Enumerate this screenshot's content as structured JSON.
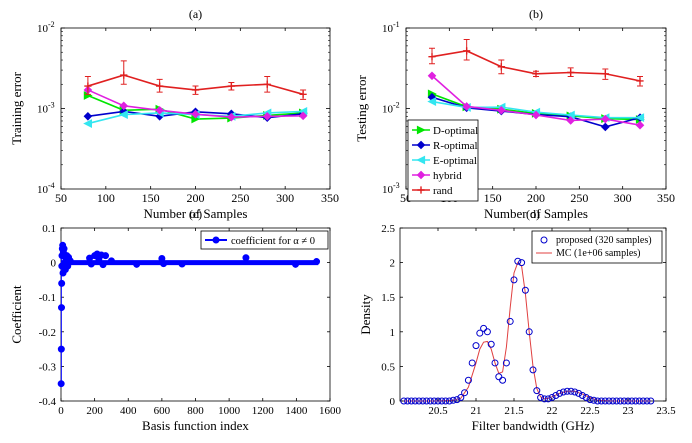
{
  "chart_data": [
    {
      "panel": "(a)",
      "type": "line",
      "title": "(a)",
      "xlabel": "Number of Samples",
      "ylabel": "Training error",
      "xlim": [
        50,
        350
      ],
      "ylim": [
        0.0001,
        0.01
      ],
      "yscale": "log",
      "xticks": [
        "50",
        "100",
        "150",
        "200",
        "250",
        "300",
        "350"
      ],
      "yticks": [
        {
          "base": "10",
          "exp": "-4",
          "value": 0.0001
        },
        {
          "base": "10",
          "exp": "-3",
          "value": 0.001
        },
        {
          "base": "10",
          "exp": "-2",
          "value": 0.01
        }
      ],
      "x": [
        80,
        120,
        160,
        200,
        240,
        280,
        320
      ],
      "series": [
        {
          "color": "#00e600",
          "marker": "triangle-right",
          "values": [
            0.00145,
            0.00095,
            0.00098,
            0.00074,
            0.00076,
            0.00082,
            0.00088
          ]
        },
        {
          "color": "#0000cc",
          "marker": "diamond",
          "values": [
            0.0008,
            0.00092,
            0.0008,
            0.00091,
            0.00086,
            0.00077,
            0.00086
          ]
        },
        {
          "color": "#33e6f0",
          "marker": "triangle-left",
          "values": [
            0.00065,
            0.00084,
            0.00088,
            0.00084,
            0.0008,
            0.00088,
            0.00092
          ]
        },
        {
          "color": "#e020e0",
          "marker": "diamond",
          "values": [
            0.0017,
            0.00108,
            0.00095,
            0.00085,
            0.00078,
            0.0008,
            0.00081
          ]
        },
        {
          "color": "#e02020",
          "marker": "plus",
          "values": [
            0.0019,
            0.0026,
            0.0019,
            0.0017,
            0.0019,
            0.002,
            0.0015
          ],
          "err_lo": [
            0.0015,
            0.002,
            0.0016,
            0.0015,
            0.0017,
            0.0016,
            0.0013
          ],
          "err_hi": [
            0.0025,
            0.0039,
            0.0023,
            0.0019,
            0.0021,
            0.0025,
            0.0017
          ]
        }
      ]
    },
    {
      "panel": "(b)",
      "type": "line",
      "title": "(b)",
      "xlabel": "Number of Samples",
      "ylabel": "Testing error",
      "xlim": [
        50,
        350
      ],
      "ylim": [
        0.001,
        0.1
      ],
      "yscale": "log",
      "xticks": [
        "50",
        "100",
        "150",
        "200",
        "250",
        "300",
        "350"
      ],
      "yticks": [
        {
          "base": "10",
          "exp": "-3",
          "value": 0.001
        },
        {
          "base": "10",
          "exp": "-2",
          "value": 0.01
        },
        {
          "base": "10",
          "exp": "-1",
          "value": 0.1
        }
      ],
      "legend_position": "bottom-left",
      "x": [
        80,
        120,
        160,
        200,
        240,
        280,
        320
      ],
      "series": [
        {
          "name": "D-optimal",
          "color": "#00e600",
          "marker": "triangle-right",
          "values": [
            0.0152,
            0.0105,
            0.0098,
            0.0087,
            0.0081,
            0.0075,
            0.0073
          ]
        },
        {
          "name": "R-optimal",
          "color": "#0000cc",
          "marker": "diamond",
          "values": [
            0.0138,
            0.0102,
            0.0093,
            0.0084,
            0.0079,
            0.0059,
            0.0077
          ]
        },
        {
          "name": "E-optimal",
          "color": "#33e6f0",
          "marker": "triangle-left",
          "values": [
            0.0122,
            0.0103,
            0.0104,
            0.009,
            0.0083,
            0.0077,
            0.0077
          ]
        },
        {
          "name": "hybrid",
          "color": "#e020e0",
          "marker": "diamond",
          "values": [
            0.0255,
            0.0106,
            0.0095,
            0.0083,
            0.0071,
            0.0074,
            0.0062
          ]
        },
        {
          "name": "rand",
          "color": "#e02020",
          "marker": "plus",
          "values": [
            0.044,
            0.052,
            0.033,
            0.027,
            0.028,
            0.027,
            0.022
          ],
          "err_lo": [
            0.036,
            0.04,
            0.027,
            0.025,
            0.025,
            0.023,
            0.019
          ],
          "err_hi": [
            0.056,
            0.072,
            0.04,
            0.029,
            0.032,
            0.031,
            0.025
          ]
        }
      ]
    },
    {
      "panel": "(c)",
      "type": "scatter",
      "title": "(c)",
      "xlabel": "Basis function index",
      "ylabel": "Coefficient",
      "xlim": [
        0,
        1600
      ],
      "ylim": [
        -0.4,
        0.1
      ],
      "xticks": [
        "0",
        "200",
        "400",
        "600",
        "800",
        "1000",
        "1200",
        "1400",
        "1600"
      ],
      "yticks": [
        "-0.4",
        "-0.3",
        "-0.2",
        "-0.1",
        "0",
        "0.1"
      ],
      "legend_position": "top-right",
      "series": [
        {
          "name": "coefficient for α ≠ 0",
          "color": "#0000ff",
          "points": [
            [
              1,
              -0.35
            ],
            [
              2,
              -0.25
            ],
            [
              3,
              -0.13
            ],
            [
              4,
              -0.06
            ],
            [
              5,
              -0.01
            ],
            [
              6,
              0.02
            ],
            [
              8,
              0.04
            ],
            [
              10,
              0.05
            ],
            [
              12,
              -0.03
            ],
            [
              14,
              0.03
            ],
            [
              18,
              0.04
            ],
            [
              22,
              0.02
            ],
            [
              26,
              -0.02
            ],
            [
              30,
              0.01
            ],
            [
              35,
              0.02
            ],
            [
              40,
              -0.01
            ],
            [
              45,
              0.015
            ],
            [
              55,
              0.005
            ],
            [
              170,
              0.013
            ],
            [
              180,
              -0.004
            ],
            [
              200,
              0.02
            ],
            [
              215,
              0.025
            ],
            [
              225,
              0.01
            ],
            [
              240,
              0.022
            ],
            [
              250,
              -0.006
            ],
            [
              265,
              0.02
            ],
            [
              300,
              0.005
            ],
            [
              450,
              -0.005
            ],
            [
              600,
              0.012
            ],
            [
              610,
              -0.003
            ],
            [
              720,
              -0.004
            ],
            [
              1100,
              0.014
            ],
            [
              1395,
              -0.005
            ],
            [
              1520,
              0.003
            ]
          ]
        }
      ]
    },
    {
      "panel": "(d)",
      "type": "line",
      "title": "(d)",
      "xlabel": "Filter bandwidth (GHz)",
      "ylabel": "Density",
      "xlim": [
        20.0,
        23.5
      ],
      "ylim": [
        0,
        2.5
      ],
      "xticks": [
        "20.5",
        "21",
        "21.5",
        "22",
        "22.5",
        "23",
        "23.5"
      ],
      "yticks": [
        "0",
        "0.5",
        "1",
        "1.5",
        "2",
        "2.5"
      ],
      "legend_position": "top-right",
      "series": [
        {
          "name": "proposed (320 samples)",
          "color": "#0000cc",
          "marker": "circle",
          "x": [
            20.05,
            20.1,
            20.15,
            20.2,
            20.25,
            20.3,
            20.35,
            20.4,
            20.45,
            20.5,
            20.55,
            20.6,
            20.65,
            20.7,
            20.75,
            20.8,
            20.85,
            20.9,
            20.95,
            21.0,
            21.05,
            21.1,
            21.15,
            21.2,
            21.25,
            21.3,
            21.35,
            21.4,
            21.45,
            21.5,
            21.55,
            21.6,
            21.65,
            21.7,
            21.75,
            21.8,
            21.85,
            21.9,
            21.95,
            22.0,
            22.05,
            22.1,
            22.15,
            22.2,
            22.25,
            22.3,
            22.35,
            22.4,
            22.45,
            22.5,
            22.55,
            22.6,
            22.65,
            22.7,
            22.75,
            22.8,
            22.85,
            22.9,
            22.95,
            23.0,
            23.05,
            23.1,
            23.15,
            23.2,
            23.25,
            23.3
          ],
          "values": [
            0.0,
            0.0,
            0.0,
            0.0,
            0.0,
            0.0,
            0.0,
            0.0,
            0.0,
            0.0,
            0.0,
            0.0,
            0.0,
            0.01,
            0.02,
            0.05,
            0.12,
            0.3,
            0.55,
            0.8,
            0.98,
            1.05,
            1.0,
            0.82,
            0.55,
            0.35,
            0.3,
            0.55,
            1.15,
            1.75,
            2.02,
            2.0,
            1.6,
            1.0,
            0.45,
            0.15,
            0.05,
            0.03,
            0.03,
            0.05,
            0.08,
            0.11,
            0.13,
            0.14,
            0.14,
            0.13,
            0.11,
            0.08,
            0.05,
            0.02,
            0.01,
            0.0,
            0.0,
            0.0,
            0.0,
            0.0,
            0.0,
            0.0,
            0.0,
            0.0,
            0.0,
            0.0,
            0.0,
            0.0,
            0.0,
            0.0
          ]
        },
        {
          "name": "MC (1e+06 samples)",
          "color": "#e04040",
          "x": [
            20.05,
            20.5,
            20.7,
            20.8,
            20.9,
            21.0,
            21.05,
            21.1,
            21.15,
            21.2,
            21.25,
            21.3,
            21.35,
            21.4,
            21.45,
            21.5,
            21.55,
            21.6,
            21.65,
            21.7,
            21.75,
            21.8,
            21.85,
            21.9,
            21.95,
            22.0,
            22.1,
            22.2,
            22.3,
            22.4,
            22.5,
            22.6,
            22.8,
            23.3
          ],
          "values": [
            0.0,
            0.0,
            0.01,
            0.04,
            0.2,
            0.55,
            0.75,
            0.85,
            0.86,
            0.75,
            0.55,
            0.4,
            0.42,
            0.78,
            1.35,
            1.85,
            2.0,
            1.95,
            1.55,
            1.0,
            0.5,
            0.18,
            0.06,
            0.03,
            0.04,
            0.06,
            0.11,
            0.14,
            0.14,
            0.1,
            0.05,
            0.01,
            0.0,
            0.0
          ]
        }
      ]
    }
  ]
}
